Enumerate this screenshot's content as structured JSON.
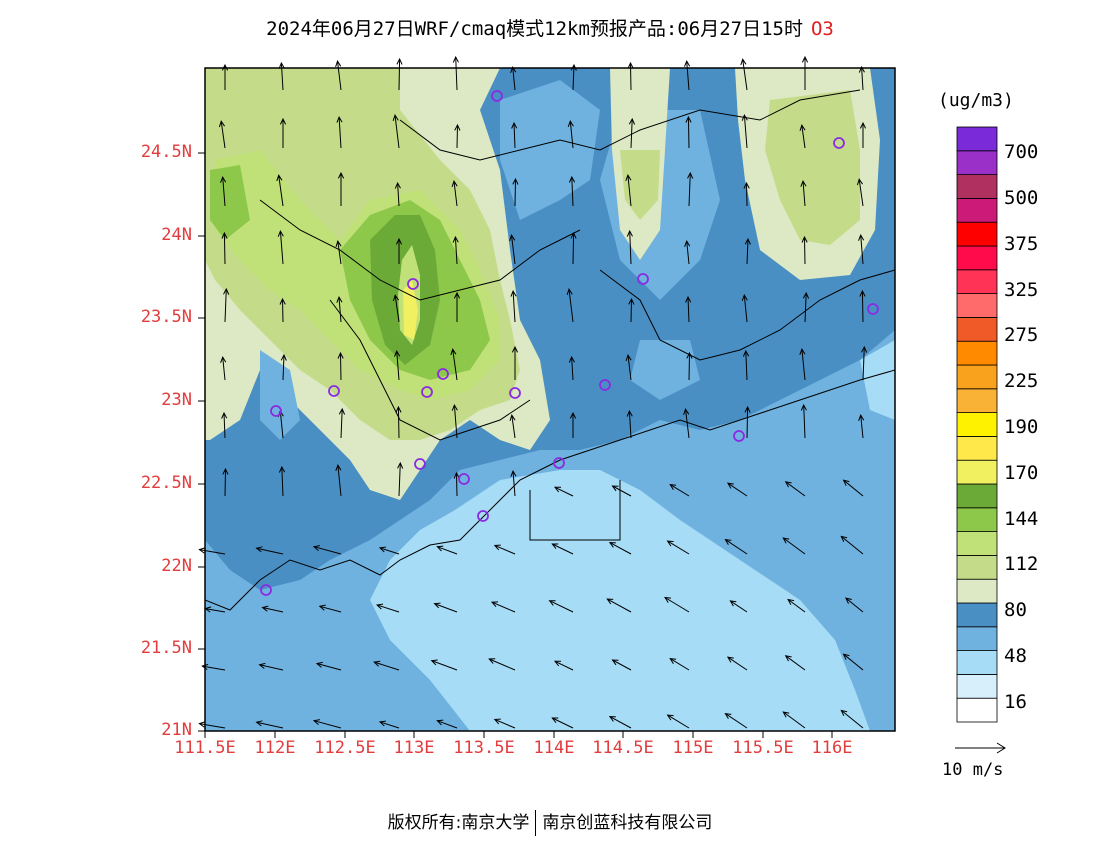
{
  "title": {
    "text": "2024年06月27日WRF/cmaq模式12km预报产品:06月27日15时",
    "species": "O3"
  },
  "axes": {
    "y_ticks": [
      "24.5N",
      "24N",
      "23.5N",
      "23N",
      "22.5N",
      "22N",
      "21.5N",
      "21N"
    ],
    "x_ticks": [
      "111.5E",
      "112E",
      "112.5E",
      "113E",
      "113.5E",
      "114E",
      "114.5E",
      "115E",
      "115.5E",
      "116E"
    ]
  },
  "colorbar": {
    "units": "(ug/m3)",
    "labels": [
      "700",
      "500",
      "375",
      "325",
      "275",
      "225",
      "190",
      "170",
      "144",
      "112",
      "80",
      "48",
      "16"
    ],
    "colors": [
      "#ffffff",
      "#d7eefb",
      "#a6dcf6",
      "#6fb2e0",
      "#4a8fc4",
      "#dde9c4",
      "#c4dc8a",
      "#c0e078",
      "#8ec84a",
      "#6caa38",
      "#f0f060",
      "#ffe84a",
      "#fff200",
      "#f9b235",
      "#f9a21e",
      "#ff8a00",
      "#f05a28",
      "#ff6a6a",
      "#ff3355",
      "#ff0a4a",
      "#ff0000",
      "#cc1a78",
      "#b03060",
      "#9b30c8",
      "#7a2ad8"
    ]
  },
  "wind_legend": {
    "label": "10 m/s"
  },
  "footer": {
    "left": "版权所有:南京大学",
    "right": "南京创蓝科技有限公司"
  },
  "stations_color": "#8a2be2"
}
